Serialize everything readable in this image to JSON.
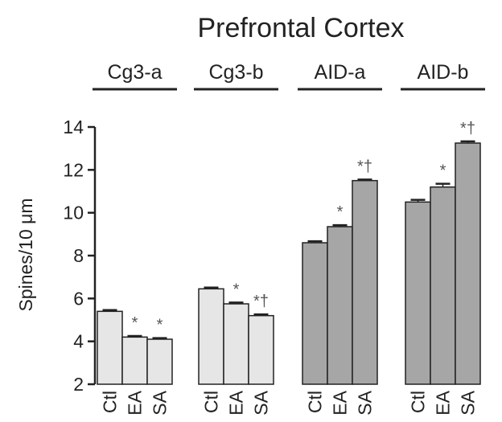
{
  "chart_data": {
    "type": "bar",
    "title": "Prefrontal Cortex",
    "ylabel": "Spines/10 μm",
    "xlabel": "",
    "ylim": [
      2,
      14
    ],
    "yticks": [
      2,
      4,
      6,
      8,
      10,
      12,
      14
    ],
    "grid": false,
    "groups": [
      {
        "name": "Cg3-a",
        "color": "#e6e6e6",
        "bars": [
          {
            "category": "Ctl",
            "value": 5.4,
            "error": 0.06,
            "mark": ""
          },
          {
            "category": "EA",
            "value": 4.2,
            "error": 0.05,
            "mark": "*"
          },
          {
            "category": "SA",
            "value": 4.1,
            "error": 0.05,
            "mark": "*"
          }
        ]
      },
      {
        "name": "Cg3-b",
        "color": "#e6e6e6",
        "bars": [
          {
            "category": "Ctl",
            "value": 6.45,
            "error": 0.06,
            "mark": ""
          },
          {
            "category": "EA",
            "value": 5.75,
            "error": 0.06,
            "mark": "*"
          },
          {
            "category": "SA",
            "value": 5.2,
            "error": 0.06,
            "mark": "*†"
          }
        ]
      },
      {
        "name": "AID-a",
        "color": "#a6a6a6",
        "bars": [
          {
            "category": "Ctl",
            "value": 8.6,
            "error": 0.07,
            "mark": ""
          },
          {
            "category": "EA",
            "value": 9.35,
            "error": 0.07,
            "mark": "*"
          },
          {
            "category": "SA",
            "value": 11.5,
            "error": 0.05,
            "mark": "*†"
          }
        ]
      },
      {
        "name": "AID-b",
        "color": "#a6a6a6",
        "bars": [
          {
            "category": "Ctl",
            "value": 10.5,
            "error": 0.1,
            "mark": ""
          },
          {
            "category": "EA",
            "value": 11.2,
            "error": 0.15,
            "mark": "*"
          },
          {
            "category": "SA",
            "value": 13.25,
            "error": 0.08,
            "mark": "*†"
          }
        ]
      }
    ]
  }
}
